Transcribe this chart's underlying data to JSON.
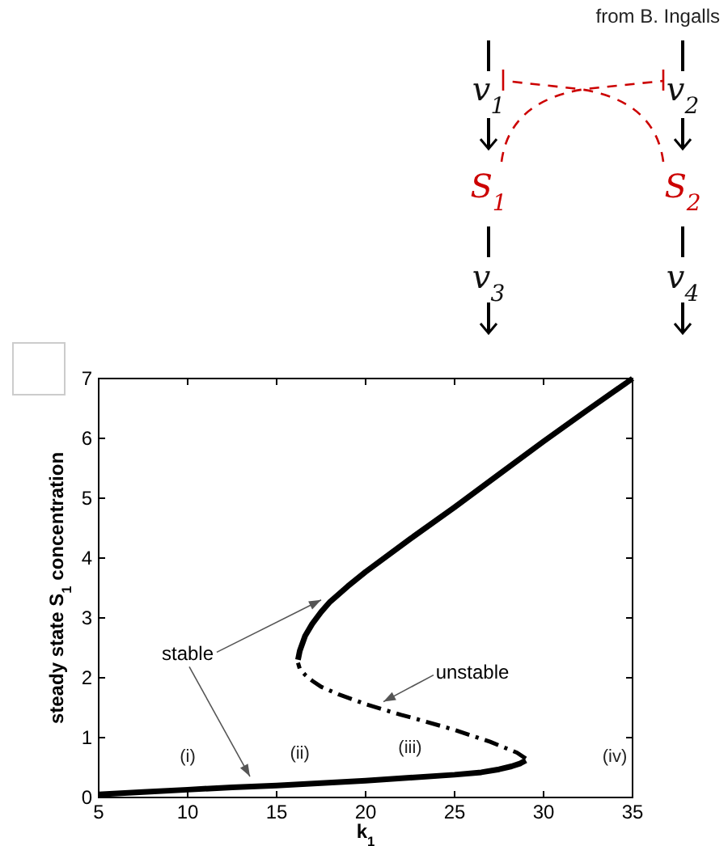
{
  "chart_data": {
    "type": "line",
    "xlabel": "k$_{1}$",
    "ylabel": "steady state S$_{1}$ concentration",
    "xlim": [
      5,
      35
    ],
    "xticks": [
      5,
      10,
      15,
      20,
      25,
      30,
      35
    ],
    "ylim": [
      0,
      7
    ],
    "yticks": [
      0,
      1,
      2,
      3,
      4,
      5,
      6,
      7
    ],
    "grid": false,
    "marker": "none",
    "series": [
      {
        "color": "#000000",
        "line_style": "solid",
        "x": [
          5,
          7.5,
          10,
          12.5,
          15,
          17.5,
          20,
          22.5,
          25,
          26.5,
          27.5,
          28.2,
          28.7,
          29
        ],
        "values": [
          0.05,
          0.09,
          0.13,
          0.17,
          0.2,
          0.24,
          0.28,
          0.33,
          0.38,
          0.42,
          0.47,
          0.52,
          0.57,
          0.62
        ]
      },
      {
        "color": "#000000",
        "line_style": "dashed",
        "x": [
          29,
          28.5,
          27,
          25,
          23,
          22,
          20,
          18.5,
          17.5,
          17,
          16.6,
          16.3,
          16.2
        ],
        "values": [
          0.65,
          0.75,
          0.93,
          1.13,
          1.3,
          1.38,
          1.56,
          1.72,
          1.85,
          1.95,
          2.05,
          2.15,
          2.25
        ]
      },
      {
        "color": "#000000",
        "line_style": "solid",
        "x": [
          16.2,
          16.3,
          16.6,
          17,
          17.5,
          18,
          19,
          20,
          22.5,
          25,
          27.5,
          30,
          32.5,
          35
        ],
        "values": [
          2.3,
          2.45,
          2.7,
          2.9,
          3.1,
          3.27,
          3.53,
          3.77,
          4.32,
          4.85,
          5.4,
          5.95,
          6.48,
          7
        ]
      }
    ],
    "annotations": [
      "from B. Ingalls",
      "v$_{1}$",
      "v$_{2}$",
      "S$_{1}$",
      "S$_{2}$",
      "v$_{3}$",
      "v$_{4}$",
      "(i)",
      "(ii)",
      "(iii)",
      "(iv)",
      {
        "text": "stable",
        "x": 17.5,
        "y": 3.3
      },
      {
        "text": "unstable",
        "x": 21,
        "y": 1.6
      }
    ]
  }
}
